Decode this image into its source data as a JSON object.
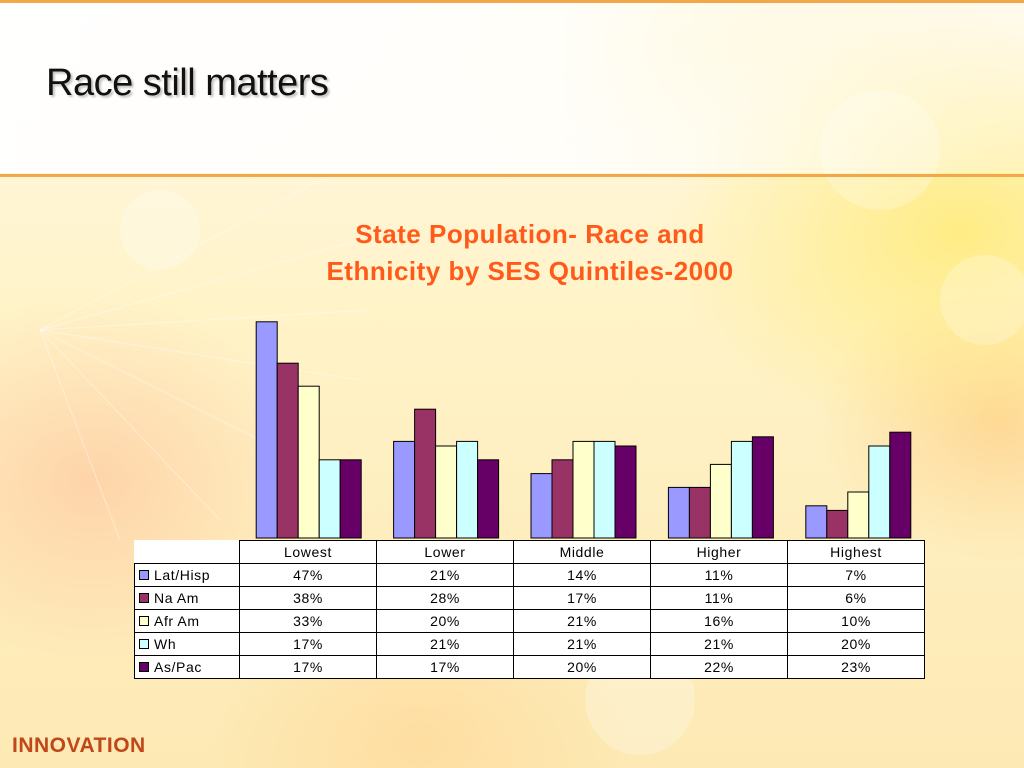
{
  "slide": {
    "title": "Race still matters",
    "brand": "INNOVATION"
  },
  "chart_data": {
    "type": "bar",
    "title_lines": [
      "State Population- Race and",
      "Ethnicity by SES Quintiles-2000"
    ],
    "categories": [
      "Lowest",
      "Lower",
      "Middle",
      "Higher",
      "Highest"
    ],
    "series": [
      {
        "name": "Lat/Hisp",
        "color": "#9999ff",
        "values": [
          47,
          21,
          14,
          11,
          7
        ],
        "labels": [
          "47%",
          "21%",
          "14%",
          "11%",
          "7%"
        ]
      },
      {
        "name": "Na Am",
        "color": "#993366",
        "values": [
          38,
          28,
          17,
          11,
          6
        ],
        "labels": [
          "38%",
          "28%",
          "17%",
          "11%",
          "6%"
        ]
      },
      {
        "name": "Afr Am",
        "color": "#ffffcc",
        "values": [
          33,
          20,
          21,
          16,
          10
        ],
        "labels": [
          "33%",
          "20%",
          "21%",
          "16%",
          "10%"
        ]
      },
      {
        "name": "Wh",
        "color": "#ccffff",
        "values": [
          17,
          21,
          21,
          21,
          20
        ],
        "labels": [
          "17%",
          "21%",
          "21%",
          "21%",
          "20%"
        ]
      },
      {
        "name": "As/Pac",
        "color": "#660066",
        "values": [
          17,
          17,
          20,
          22,
          23
        ],
        "labels": [
          "17%",
          "17%",
          "20%",
          "22%",
          "23%"
        ]
      }
    ],
    "ylim": [
      0,
      50
    ],
    "grid": false,
    "legend": "data-table-below"
  }
}
